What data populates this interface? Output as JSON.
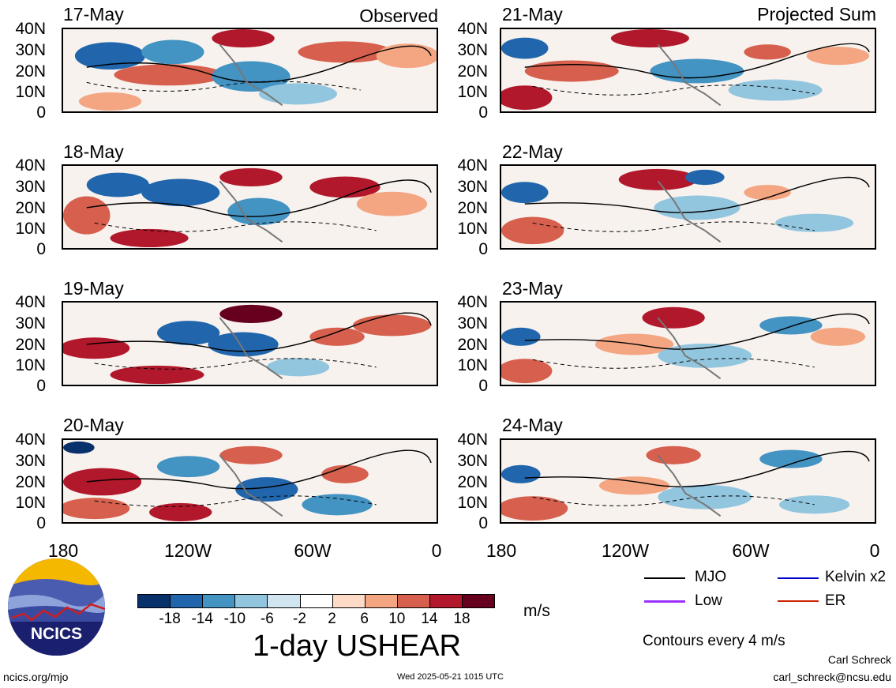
{
  "panels_left": [
    {
      "date": "17-May",
      "tag": "Observed"
    },
    {
      "date": "18-May",
      "tag": ""
    },
    {
      "date": "19-May",
      "tag": ""
    },
    {
      "date": "20-May",
      "tag": ""
    }
  ],
  "panels_right": [
    {
      "date": "21-May",
      "tag": "Projected Sum"
    },
    {
      "date": "22-May",
      "tag": ""
    },
    {
      "date": "23-May",
      "tag": ""
    },
    {
      "date": "24-May",
      "tag": ""
    }
  ],
  "y_ticks": [
    "40N",
    "30N",
    "20N",
    "10N",
    "0"
  ],
  "x_ticks_left": [
    "180",
    "120W",
    "60W",
    "0"
  ],
  "x_ticks_right": [
    "180",
    "120W",
    "60W",
    "0"
  ],
  "colorbar": {
    "colors": [
      "#08306b",
      "#2166ac",
      "#4393c3",
      "#92c5de",
      "#d1e5f0",
      "#ffffff",
      "#fddbc7",
      "#f4a582",
      "#d6604d",
      "#b2182b",
      "#67001f"
    ],
    "labels": [
      "-18",
      "-14",
      "-10",
      "-6",
      "-2",
      "2",
      "6",
      "10",
      "14",
      "18"
    ],
    "unit": "m/s"
  },
  "title": "1-day USHEAR",
  "legend": {
    "items": [
      {
        "label": "MJO",
        "color": "#000000"
      },
      {
        "label": "Kelvin x2",
        "color": "#0000cc"
      },
      {
        "label": "Low",
        "color": "#9b30ff"
      },
      {
        "label": "ER",
        "color": "#cc2200"
      }
    ],
    "note": "Contours every 4 m/s"
  },
  "footer": {
    "site": "ncics.org/mjo",
    "timestamp": "Wed 2025-05-21 1015 UTC",
    "author": "Carl Schreck",
    "email": "carl_schreck@ncsu.edu"
  },
  "logo_text": "NCICS"
}
